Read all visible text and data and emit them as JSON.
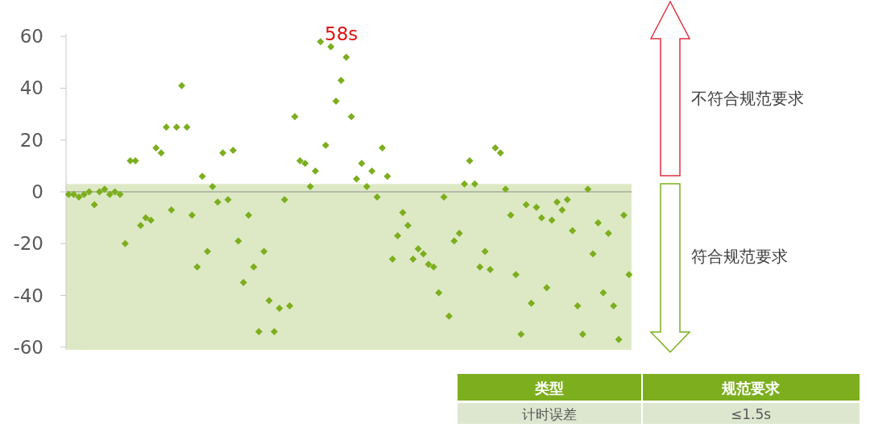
{
  "chart_data": {
    "type": "scatter",
    "categories": [
      null,
      null,
      null,
      null,
      null,
      null,
      null,
      null,
      null,
      null,
      null,
      null,
      null,
      null,
      null,
      null,
      null,
      null,
      null,
      null,
      null,
      null,
      null,
      null,
      null,
      null,
      null,
      null,
      null,
      null,
      null,
      null,
      null,
      null,
      null,
      null,
      null,
      null,
      null,
      null,
      null,
      null,
      null,
      null,
      null,
      null,
      null,
      null,
      null,
      null,
      null,
      null,
      null,
      null,
      null,
      null,
      null,
      null,
      null,
      null,
      null,
      null,
      null,
      null,
      null,
      null,
      null,
      null,
      null,
      null,
      null,
      null,
      null,
      null,
      null,
      null,
      null,
      null,
      null,
      null,
      null,
      null,
      null,
      null,
      null,
      null,
      null,
      null,
      null,
      null,
      null,
      null,
      null,
      null,
      null,
      null,
      null,
      null,
      null,
      null,
      null,
      null,
      null,
      null,
      null,
      null,
      null,
      null,
      null,
      null
    ],
    "series": [
      {
        "color": "#7cae1e",
        "values": [
          -1,
          -1,
          -2,
          -1,
          0,
          -5,
          0,
          1,
          -1,
          0,
          -1,
          -20,
          12,
          12,
          -13,
          -10,
          -11,
          17,
          15,
          25,
          -7,
          25,
          41,
          25,
          -9,
          -29,
          6,
          -23,
          2,
          -4,
          15,
          -3,
          16,
          -19,
          -35,
          -9,
          -29,
          -54,
          -23,
          -42,
          -54,
          -45,
          -3,
          -44,
          29,
          12,
          11,
          2,
          8,
          58,
          18,
          56,
          35,
          43,
          52,
          29,
          5,
          11,
          2,
          8,
          -2,
          17,
          6,
          -26,
          -17,
          -8,
          -13,
          -26,
          -22,
          -24,
          -28,
          -29,
          -39,
          -2,
          -48,
          -19,
          -16,
          3,
          12,
          3,
          -29,
          -23,
          -30,
          17,
          15,
          1,
          -9,
          -32,
          -55,
          -5,
          -43,
          -6,
          -10,
          -37,
          -11,
          -4,
          -7,
          -3,
          -15,
          -44,
          -55,
          1,
          -24,
          -12,
          -39,
          -16,
          -44,
          -57,
          -9,
          -32
        ]
      }
    ],
    "marker": "diamond",
    "ylim": [
      -61,
      61
    ],
    "yticks": [
      -60,
      -40,
      -20,
      0,
      20,
      40,
      60
    ],
    "tick_labels": "y",
    "grid": false,
    "bands": [
      {
        "axis": "y",
        "from": -61,
        "to": 3,
        "color": "#dde9c4"
      }
    ],
    "ref_lines": [
      {
        "axis": "y",
        "value": 0,
        "color": "#8c8c8c"
      }
    ],
    "annotations": [
      "58s",
      "不符合规范要求",
      "符合规范要求",
      "类型",
      "规范要求",
      "计时误差",
      "≤1.5s"
    ]
  }
}
